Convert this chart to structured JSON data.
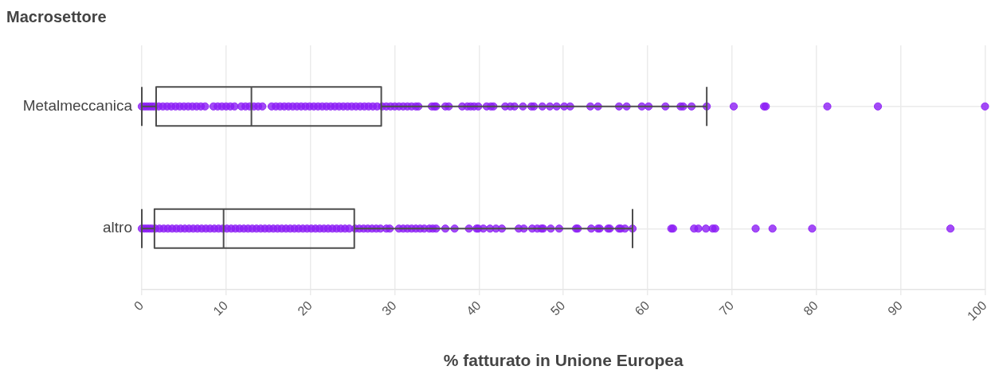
{
  "chart_data": {
    "type": "box",
    "orientation": "horizontal",
    "ylabel": "Macrosettore",
    "xlabel": "% fatturato in Unione Europea",
    "categories": [
      "Metalmeccanica",
      "altro"
    ],
    "series": [
      {
        "type": "box",
        "color": "#4d4d4d",
        "boxes": [
          {
            "low": 0,
            "q1": 1.7,
            "median": 13.0,
            "q3": 28.4,
            "high": 67.0
          },
          {
            "low": 0,
            "q1": 1.5,
            "median": 9.7,
            "q3": 25.2,
            "high": 58.2
          }
        ]
      },
      {
        "type": "scatter",
        "color": "#8c1ef5",
        "x": [
          "Metalmeccanica",
          "Metalmeccanica",
          "Metalmeccanica",
          "Metalmeccanica",
          "Metalmeccanica",
          "Metalmeccanica",
          "Metalmeccanica",
          "Metalmeccanica",
          "Metalmeccanica",
          "Metalmeccanica",
          "Metalmeccanica",
          "Metalmeccanica",
          "Metalmeccanica",
          "Metalmeccanica",
          "Metalmeccanica",
          "Metalmeccanica",
          "Metalmeccanica",
          "Metalmeccanica",
          "Metalmeccanica",
          "Metalmeccanica",
          "Metalmeccanica",
          "Metalmeccanica",
          "Metalmeccanica",
          "Metalmeccanica",
          "Metalmeccanica",
          "Metalmeccanica",
          "Metalmeccanica",
          "Metalmeccanica",
          "Metalmeccanica",
          "Metalmeccanica",
          "Metalmeccanica",
          "Metalmeccanica",
          "Metalmeccanica",
          "Metalmeccanica",
          "Metalmeccanica",
          "Metalmeccanica",
          "Metalmeccanica",
          "Metalmeccanica",
          "Metalmeccanica",
          "Metalmeccanica",
          "Metalmeccanica",
          "Metalmeccanica",
          "Metalmeccanica",
          "Metalmeccanica",
          "Metalmeccanica",
          "Metalmeccanica",
          "Metalmeccanica",
          "Metalmeccanica",
          "Metalmeccanica",
          "Metalmeccanica",
          "Metalmeccanica",
          "Metalmeccanica",
          "Metalmeccanica",
          "Metalmeccanica",
          "Metalmeccanica",
          "Metalmeccanica",
          "Metalmeccanica",
          "Metalmeccanica",
          "Metalmeccanica",
          "Metalmeccanica",
          "Metalmeccanica",
          "Metalmeccanica",
          "Metalmeccanica",
          "Metalmeccanica",
          "Metalmeccanica",
          "Metalmeccanica",
          "Metalmeccanica",
          "Metalmeccanica",
          "Metalmeccanica",
          "Metalmeccanica",
          "Metalmeccanica",
          "Metalmeccanica",
          "Metalmeccanica",
          "Metalmeccanica",
          "Metalmeccanica",
          "Metalmeccanica",
          "Metalmeccanica",
          "Metalmeccanica",
          "Metalmeccanica",
          "Metalmeccanica",
          "Metalmeccanica",
          "Metalmeccanica",
          "Metalmeccanica",
          "Metalmeccanica",
          "Metalmeccanica",
          "Metalmeccanica",
          "Metalmeccanica",
          "Metalmeccanica",
          "Metalmeccanica",
          "Metalmeccanica",
          "Metalmeccanica",
          "Metalmeccanica",
          "Metalmeccanica",
          "Metalmeccanica",
          "Metalmeccanica",
          "Metalmeccanica",
          "Metalmeccanica",
          "Metalmeccanica",
          "Metalmeccanica",
          "Metalmeccanica",
          "Metalmeccanica",
          "Metalmeccanica",
          "Metalmeccanica",
          "Metalmeccanica",
          "Metalmeccanica",
          "Metalmeccanica",
          "Metalmeccanica",
          "altro",
          "altro",
          "altro",
          "altro",
          "altro",
          "altro",
          "altro",
          "altro",
          "altro",
          "altro",
          "altro",
          "altro",
          "altro",
          "altro",
          "altro",
          "altro",
          "altro",
          "altro",
          "altro",
          "altro",
          "altro",
          "altro",
          "altro",
          "altro",
          "altro",
          "altro",
          "altro",
          "altro",
          "altro",
          "altro",
          "altro",
          "altro",
          "altro",
          "altro",
          "altro",
          "altro",
          "altro",
          "altro",
          "altro",
          "altro",
          "altro",
          "altro",
          "altro",
          "altro",
          "altro",
          "altro",
          "altro",
          "altro",
          "altro",
          "altro",
          "altro",
          "altro",
          "altro",
          "altro",
          "altro",
          "altro",
          "altro",
          "altro",
          "altro",
          "altro",
          "altro",
          "altro",
          "altro",
          "altro",
          "altro",
          "altro",
          "altro",
          "altro",
          "altro",
          "altro",
          "altro",
          "altro",
          "altro",
          "altro",
          "altro",
          "altro",
          "altro",
          "altro",
          "altro",
          "altro",
          "altro",
          "altro",
          "altro",
          "altro",
          "altro",
          "altro",
          "altro",
          "altro",
          "altro",
          "altro",
          "altro",
          "altro",
          "altro",
          "altro",
          "altro",
          "altro",
          "altro",
          "altro",
          "altro",
          "altro",
          "altro",
          "altro",
          "altro",
          "altro",
          "altro",
          "altro",
          "altro",
          "altro",
          "altro",
          "altro"
        ],
        "values": [
          0,
          0.3,
          0.6,
          0.9,
          1.2,
          1.5,
          2.0,
          2.5,
          3.0,
          3.5,
          4.0,
          4.5,
          5.0,
          5.5,
          6.0,
          6.5,
          7.0,
          7.5,
          8.5,
          9.0,
          9.5,
          10.0,
          10.5,
          11.0,
          11.8,
          12.3,
          12.8,
          13.3,
          13.8,
          14.3,
          15.4,
          15.9,
          16.4,
          16.9,
          17.4,
          17.9,
          18.4,
          18.9,
          19.4,
          19.9,
          20.4,
          20.9,
          21.4,
          21.9,
          22.4,
          22.9,
          23.4,
          23.9,
          24.4,
          24.9,
          25.4,
          25.9,
          26.4,
          26.9,
          27.4,
          27.9,
          28.5,
          29.0,
          29.5,
          30.0,
          30.5,
          31.0,
          31.5,
          32.0,
          32.5,
          32.8,
          34.4,
          34.7,
          34.9,
          36.0,
          36.4,
          38.0,
          38.6,
          39.0,
          39.4,
          39.9,
          40.9,
          41.4,
          41.7,
          43.1,
          43.7,
          44.2,
          45.2,
          46.2,
          46.5,
          47.5,
          48.4,
          49.2,
          50.1,
          50.8,
          53.2,
          54.1,
          56.6,
          57.5,
          59.3,
          60.1,
          62.1,
          63.9,
          64.2,
          65.2,
          67.0,
          70.2,
          73.8,
          74.0,
          81.3,
          87.3,
          100,
          0,
          0.3,
          0.6,
          0.9,
          1.2,
          1.6,
          2.1,
          2.6,
          3.1,
          3.6,
          4.1,
          4.6,
          5.1,
          5.6,
          6.1,
          6.6,
          7.1,
          7.6,
          8.1,
          8.6,
          9.1,
          9.6,
          10.1,
          10.6,
          11.1,
          11.6,
          12.1,
          12.6,
          13.1,
          13.6,
          14.1,
          14.6,
          15.1,
          15.6,
          16.1,
          16.6,
          17.1,
          17.6,
          18.1,
          18.6,
          19.1,
          19.6,
          20.1,
          20.6,
          21.1,
          21.6,
          22.1,
          22.6,
          23.1,
          23.6,
          24.1,
          24.6,
          25.3,
          25.8,
          26.3,
          26.8,
          27.3,
          27.8,
          28.3,
          29.0,
          29.4,
          30.5,
          31.0,
          31.5,
          32.0,
          32.5,
          33.0,
          33.5,
          34.1,
          34.5,
          34.9,
          36.0,
          37.1,
          38.8,
          39.7,
          39.9,
          40.5,
          41.3,
          42.0,
          42.7,
          44.7,
          45.3,
          46.3,
          46.9,
          47.4,
          47.6,
          48.5,
          49.5,
          51.5,
          51.7,
          53.3,
          54.1,
          54.3,
          55.3,
          55.5,
          56.6,
          56.8,
          57.3,
          58.2,
          62.8,
          63.0,
          65.5,
          66.0,
          66.9,
          67.7,
          68.0,
          72.8,
          74.8,
          79.5,
          95.9
        ]
      }
    ],
    "xlim": [
      0,
      100
    ],
    "xticks": [
      0,
      10,
      20,
      30,
      40,
      50,
      60,
      70,
      80,
      90,
      100
    ],
    "grid": true,
    "marker": "circle"
  }
}
